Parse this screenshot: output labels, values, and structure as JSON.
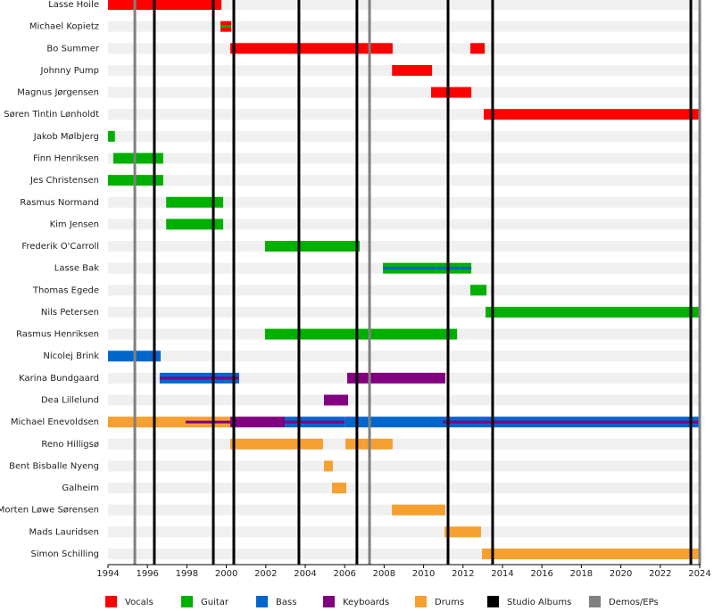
{
  "chart_data": {
    "type": "timeline",
    "xlim": [
      1994,
      2024
    ],
    "xticks": [
      1994,
      1996,
      1998,
      2000,
      2002,
      2004,
      2006,
      2008,
      2010,
      2012,
      2014,
      2016,
      2018,
      2020,
      2022,
      2024
    ],
    "roles": [
      {
        "name": "Vocals",
        "color": "#ff0000"
      },
      {
        "name": "Guitar",
        "color": "#00b000"
      },
      {
        "name": "Bass",
        "color": "#0066cc"
      },
      {
        "name": "Keyboards",
        "color": "#800080"
      },
      {
        "name": "Drums",
        "color": "#f5a030"
      }
    ],
    "events": [
      {
        "name": "Studio Albums",
        "color": "#000000",
        "x": [
          1996.35,
          1999.34,
          2000.38,
          2003.68,
          2006.62,
          2011.24,
          2013.5,
          2023.55
        ]
      },
      {
        "name": "Demos/EPs",
        "color": "#808080",
        "x": [
          1995.36,
          2007.26,
          2024
        ]
      }
    ],
    "rows": [
      {
        "name": "Lasse Hoile",
        "periods": [
          {
            "role": "Vocals",
            "start": 1994,
            "end": 1999.75
          }
        ]
      },
      {
        "name": "Michael Kopietz",
        "periods": [
          {
            "role": "Vocals",
            "start": 1999.7,
            "end": 2000.25,
            "secondary": "Guitar"
          }
        ]
      },
      {
        "name": "Bo Summer",
        "periods": [
          {
            "role": "Vocals",
            "start": 2000.2,
            "end": 2008.43
          },
          {
            "role": "Vocals",
            "start": 2012.37,
            "end": 2013.1
          }
        ]
      },
      {
        "name": "Johnny Pump",
        "periods": [
          {
            "role": "Vocals",
            "start": 2008.4,
            "end": 2010.43
          }
        ]
      },
      {
        "name": "Magnus Jørgensen",
        "periods": [
          {
            "role": "Vocals",
            "start": 2010.38,
            "end": 2012.42
          }
        ]
      },
      {
        "name": "Søren Tintin Lønholdt",
        "periods": [
          {
            "role": "Vocals",
            "start": 2013.05,
            "end": 2024
          }
        ]
      },
      {
        "name": "Jakob Mølbjerg",
        "periods": [
          {
            "role": "Guitar",
            "start": 1994,
            "end": 1994.35
          }
        ]
      },
      {
        "name": "Finn Henriksen",
        "periods": [
          {
            "role": "Guitar",
            "start": 1994.27,
            "end": 1996.8
          }
        ]
      },
      {
        "name": "Jes Christensen",
        "periods": [
          {
            "role": "Guitar",
            "start": 1994,
            "end": 1996.8
          }
        ]
      },
      {
        "name": "Rasmus Normand",
        "periods": [
          {
            "role": "Guitar",
            "start": 1996.95,
            "end": 1999.84
          }
        ]
      },
      {
        "name": "Kim Jensen",
        "periods": [
          {
            "role": "Guitar",
            "start": 1996.95,
            "end": 1999.84
          }
        ]
      },
      {
        "name": "Frederik O'Carroll",
        "periods": [
          {
            "role": "Guitar",
            "start": 2001.96,
            "end": 2006.76
          }
        ]
      },
      {
        "name": "Lasse Bak",
        "periods": [
          {
            "role": "Guitar",
            "start": 2007.94,
            "end": 2012.42,
            "secondary": "Bass"
          }
        ]
      },
      {
        "name": "Thomas Egede",
        "periods": [
          {
            "role": "Guitar",
            "start": 2012.37,
            "end": 2013.19
          }
        ]
      },
      {
        "name": "Nils Petersen",
        "periods": [
          {
            "role": "Guitar",
            "start": 2013.14,
            "end": 2024
          }
        ]
      },
      {
        "name": "Rasmus Henriksen",
        "periods": [
          {
            "role": "Guitar",
            "start": 2001.96,
            "end": 2011.7
          }
        ]
      },
      {
        "name": "Nicolej Brink",
        "periods": [
          {
            "role": "Bass",
            "start": 1994,
            "end": 1996.67
          }
        ]
      },
      {
        "name": "Karina Bundgaard",
        "periods": [
          {
            "role": "Bass",
            "start": 1996.62,
            "end": 2000.65,
            "secondary": "Keyboards"
          },
          {
            "role": "Keyboards",
            "start": 2006.13,
            "end": 2011.1
          }
        ]
      },
      {
        "name": "Dea Lillelund",
        "periods": [
          {
            "role": "Keyboards",
            "start": 2004.95,
            "end": 2006.17
          }
        ]
      },
      {
        "name": "Michael Enevoldsen",
        "periods": [
          {
            "role": "Drums",
            "start": 1994,
            "end": 1997.94
          },
          {
            "role": "Drums",
            "start": 1997.94,
            "end": 2000.2,
            "secondary": "Keyboards"
          },
          {
            "role": "Keyboards",
            "start": 2000.2,
            "end": 2002.96
          },
          {
            "role": "Bass",
            "start": 2002.96,
            "end": 2006,
            "secondary": "Keyboards"
          },
          {
            "role": "Bass",
            "start": 2006,
            "end": 2010.97
          },
          {
            "role": "Bass",
            "start": 2010.97,
            "end": 2024,
            "secondary": "Keyboards"
          }
        ]
      },
      {
        "name": "Reno Hilligsø",
        "periods": [
          {
            "role": "Drums",
            "start": 2000.2,
            "end": 2004.9
          },
          {
            "role": "Drums",
            "start": 2006.04,
            "end": 2008.43
          }
        ]
      },
      {
        "name": "Bent Bisballe Nyeng",
        "periods": [
          {
            "role": "Drums",
            "start": 2004.95,
            "end": 2005.4
          }
        ]
      },
      {
        "name": "Galheim",
        "periods": [
          {
            "role": "Drums",
            "start": 2005.36,
            "end": 2006.08
          }
        ]
      },
      {
        "name": "Morten Løwe Sørensen",
        "periods": [
          {
            "role": "Drums",
            "start": 2008.39,
            "end": 2011.1
          }
        ]
      },
      {
        "name": "Mads Lauridsen",
        "periods": [
          {
            "role": "Drums",
            "start": 2011.06,
            "end": 2012.91
          }
        ]
      },
      {
        "name": "Simon Schilling",
        "periods": [
          {
            "role": "Drums",
            "start": 2012.96,
            "end": 2024
          }
        ]
      }
    ]
  }
}
